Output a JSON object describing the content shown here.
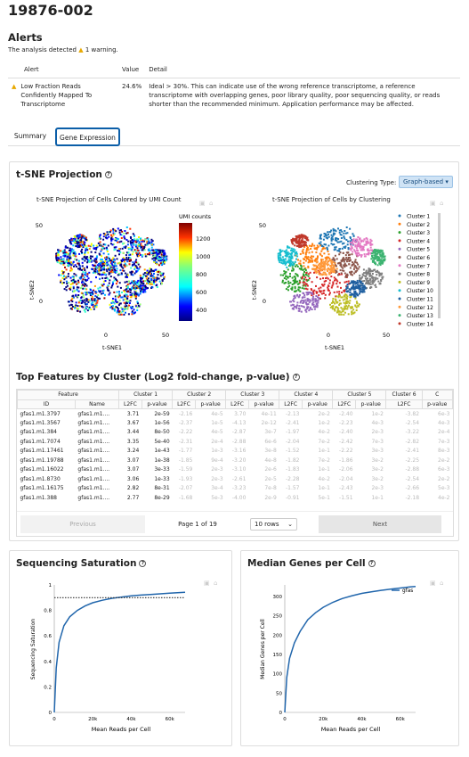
{
  "page_title": "19876-002",
  "alerts": {
    "heading": "Alerts",
    "summary": "The analysis detected",
    "summary_count": "1 warning.",
    "columns": [
      "Alert",
      "Value",
      "Detail"
    ],
    "rows": [
      {
        "alert": "Low Fraction Reads Confidently Mapped To Transcriptome",
        "value": "24.6%",
        "detail": "Ideal > 30%. This can indicate use of the wrong reference transcriptome, a reference transcriptome with overlapping genes, poor library quality, poor sequencing quality, or reads shorter than the recommended minimum. Application performance may be affected."
      }
    ]
  },
  "tabs": [
    {
      "label": "Summary"
    },
    {
      "label": "Gene Expression"
    }
  ],
  "tsne": {
    "title": "t-SNE Projection",
    "clustering_label": "Clustering Type:",
    "clustering_value": "Graph-based",
    "plot1_title": "t-SNE Projection of Cells Colored by UMI Count",
    "plot2_title": "t-SNE Projection of Cells by Clustering",
    "colorbar_title": "UMI counts",
    "colorbar_ticks": [
      "1200",
      "1000",
      "800",
      "600",
      "400"
    ],
    "xlabel": "t-SNE1",
    "ylabel": "t-SNE2",
    "x_ticks": [
      "0",
      "50"
    ],
    "y_ticks": [
      "50",
      "0"
    ],
    "clusters": [
      "Cluster 1",
      "Cluster 2",
      "Cluster 3",
      "Cluster 4",
      "Cluster 5",
      "Cluster 6",
      "Cluster 7",
      "Cluster 8",
      "Cluster 9",
      "Cluster 10",
      "Cluster 11",
      "Cluster 12",
      "Cluster 13",
      "Cluster 14"
    ],
    "cluster_colors": [
      "#1f77b4",
      "#ff7f0e",
      "#2ca02c",
      "#d62728",
      "#9467bd",
      "#8c564b",
      "#e377c2",
      "#7f7f7f",
      "#bcbd22",
      "#17becf",
      "#1f5fa0",
      "#ff9a3c",
      "#3cb371",
      "#c0392b"
    ]
  },
  "features": {
    "title": "Top Features by Cluster (Log2 fold-change, p-value)",
    "group_headers": [
      "Feature",
      "Cluster 1",
      "Cluster 2",
      "Cluster 3",
      "Cluster 4",
      "Cluster 5",
      "Cluster 6",
      "C"
    ],
    "sub_headers": [
      "ID",
      "Name",
      "L2FC",
      "p-value",
      "L2FC",
      "p-value",
      "L2FC",
      "p-value",
      "L2FC",
      "p-value",
      "L2FC",
      "p-value",
      "L2FC",
      "p-value"
    ],
    "rows": [
      [
        "gfas1.m1.3797",
        "gfas1.m1....",
        "3.71",
        "2e-59",
        "-2.16",
        "4e-5",
        "3.70",
        "4e-11",
        "-2.13",
        "2e-2",
        "-2.40",
        "1e-2",
        "-3.82",
        "6e-3"
      ],
      [
        "gfas1.m1.3567",
        "gfas1.m1....",
        "3.67",
        "1e-56",
        "-2.37",
        "1e-5",
        "-4.13",
        "2e-12",
        "-2.41",
        "1e-2",
        "-2.23",
        "4e-3",
        "-2.54",
        "4e-3"
      ],
      [
        "gfas1.m1.384",
        "gfas1.m1....",
        "3.44",
        "8e-50",
        "-2.22",
        "4e-5",
        "-2.87",
        "3e-7",
        "-1.97",
        "4e-2",
        "-2.40",
        "2e-3",
        "-3.22",
        "2e-4"
      ],
      [
        "gfas1.m1.7074",
        "gfas1.m1....",
        "3.35",
        "5e-40",
        "-2.31",
        "2e-4",
        "-2.88",
        "6e-6",
        "-2.04",
        "7e-2",
        "-2.42",
        "7e-3",
        "-2.82",
        "7e-3"
      ],
      [
        "gfas1.m1.17461",
        "gfas1.m1....",
        "3.24",
        "1e-43",
        "-1.77",
        "1e-3",
        "-3.16",
        "3e-8",
        "-1.52",
        "1e-1",
        "-2.22",
        "3e-3",
        "-2.41",
        "8e-3"
      ],
      [
        "gfas1.m1.19788",
        "gfas1.m1....",
        "3.07",
        "1e-38",
        "-1.85",
        "9e-4",
        "-3.20",
        "4e-8",
        "-1.82",
        "7e-2",
        "-1.86",
        "3e-2",
        "-2.25",
        "2e-2"
      ],
      [
        "gfas1.m1.16022",
        "gfas1.m1....",
        "3.07",
        "3e-33",
        "-1.59",
        "2e-3",
        "-3.10",
        "2e-6",
        "-1.83",
        "1e-1",
        "-2.06",
        "3e-2",
        "-2.88",
        "6e-3"
      ],
      [
        "gfas1.m1.8730",
        "gfas1.m1....",
        "3.06",
        "1e-33",
        "-1.93",
        "2e-3",
        "-2.61",
        "2e-5",
        "-2.28",
        "4e-2",
        "-2.04",
        "3e-2",
        "-2.54",
        "2e-2"
      ],
      [
        "gfas1.m1.16175",
        "gfas1.m1....",
        "2.82",
        "8e-31",
        "-2.07",
        "3e-4",
        "-3.23",
        "7e-8",
        "-1.57",
        "1e-1",
        "-2.43",
        "2e-3",
        "-2.66",
        "5e-3"
      ],
      [
        "gfas1.m1.388",
        "gfas1.m1....",
        "2.77",
        "8e-29",
        "-1.68",
        "5e-3",
        "-4.00",
        "2e-9",
        "-0.91",
        "5e-1",
        "-1.51",
        "1e-1",
        "-2.18",
        "4e-2"
      ]
    ],
    "previous": "Previous",
    "page_info": "Page 1 of 19",
    "rows_select": "10 rows",
    "next": "Next"
  },
  "saturation": {
    "title": "Sequencing Saturation",
    "ylabel": "Sequencing Saturation",
    "xlabel": "Mean Reads per Cell",
    "y_ticks": [
      "1",
      "0.8",
      "0.6",
      "0.4",
      "0.2",
      "0"
    ],
    "x_ticks": [
      "0",
      "20k",
      "40k",
      "60k"
    ]
  },
  "median": {
    "title": "Median Genes per Cell",
    "ylabel": "Median Genes per Cell",
    "xlabel": "Mean Reads per Cell",
    "y_ticks": [
      "300",
      "250",
      "200",
      "150",
      "100",
      "50",
      "0"
    ],
    "x_ticks": [
      "0",
      "20k",
      "40k",
      "60k"
    ],
    "legend": "gfas"
  },
  "chart_data": [
    {
      "type": "line",
      "title": "Sequencing Saturation",
      "xlabel": "Mean Reads per Cell",
      "ylabel": "Sequencing Saturation",
      "xlim": [
        0,
        68000
      ],
      "ylim": [
        0,
        1
      ],
      "x": [
        0,
        1000,
        2500,
        5000,
        8000,
        12000,
        16000,
        20000,
        25000,
        30000,
        35000,
        40000,
        45000,
        50000,
        55000,
        60000,
        65000,
        68000
      ],
      "y": [
        0,
        0.35,
        0.55,
        0.68,
        0.75,
        0.8,
        0.835,
        0.86,
        0.88,
        0.895,
        0.905,
        0.915,
        0.92,
        0.925,
        0.93,
        0.935,
        0.94,
        0.942
      ],
      "reference_line": 0.9
    },
    {
      "type": "line",
      "title": "Median Genes per Cell",
      "xlabel": "Mean Reads per Cell",
      "ylabel": "Median Genes per Cell",
      "xlim": [
        0,
        68000
      ],
      "ylim": [
        0,
        330
      ],
      "series": [
        {
          "name": "gfas",
          "x": [
            0,
            1000,
            2500,
            5000,
            8000,
            12000,
            16000,
            20000,
            25000,
            30000,
            35000,
            40000,
            45000,
            50000,
            55000,
            60000,
            65000,
            68000
          ],
          "y": [
            0,
            90,
            140,
            180,
            210,
            240,
            258,
            272,
            285,
            295,
            302,
            308,
            312,
            316,
            319,
            322,
            325,
            326
          ]
        }
      ]
    }
  ]
}
